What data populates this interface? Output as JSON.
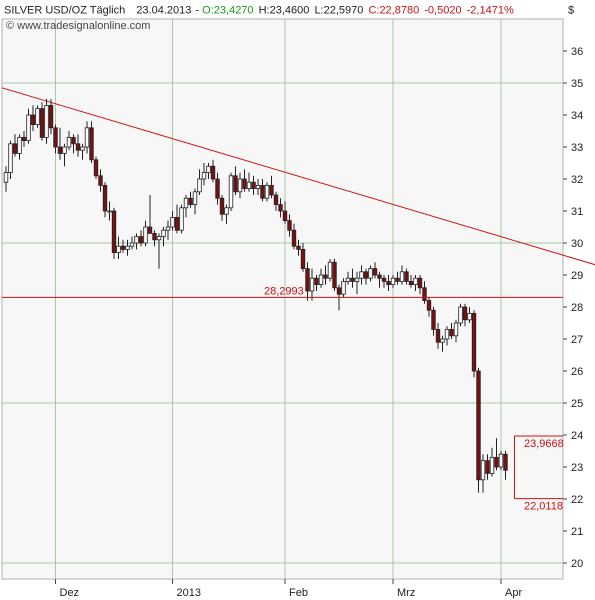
{
  "header": {
    "symbol": "SILVER USD/OZ Täglich",
    "date": "23.04.2013",
    "open": "O:23,4270",
    "high": "H:23,4600",
    "low": "L:22,5970",
    "close": "C:22,8780",
    "change": "-0,5020",
    "change_pct": "-2,1471%"
  },
  "currency_symbol": "$",
  "source": "© www.tradesignalonline.com",
  "colors": {
    "plot_bg": "#f7f7f7",
    "grid": "#a8c8a8",
    "line": "#cc1111",
    "candle": "#222222",
    "bear_fill": "#7a1010",
    "bull_fill": "#ffffff"
  },
  "chart_data": {
    "type": "candlestick",
    "ylim": [
      19.5,
      37.0
    ],
    "y_ticks": [
      "20",
      "21",
      "22",
      "23",
      "24",
      "25",
      "26",
      "27",
      "28",
      "29",
      "30",
      "31",
      "32",
      "33",
      "34",
      "35",
      "36"
    ],
    "x_labels": [
      "Dez",
      "2013",
      "Feb",
      "Mrz",
      "Apr"
    ],
    "x_label_positions": [
      11,
      37,
      62,
      86,
      110
    ],
    "grid": true,
    "annotations": [
      {
        "text": "28,2993",
        "value": 28.2993
      },
      {
        "text": "23,9668",
        "value": 23.9668
      },
      {
        "text": "22,0118",
        "value": 22.0118
      }
    ],
    "trendline": {
      "from": [
        0,
        34.85
      ],
      "to": [
        135,
        29.15
      ]
    },
    "candles": [
      [
        31.9,
        32.4,
        31.6,
        32.2
      ],
      [
        32.2,
        33.2,
        32.0,
        33.1
      ],
      [
        33.1,
        33.4,
        32.7,
        32.8
      ],
      [
        32.8,
        33.4,
        32.6,
        33.3
      ],
      [
        33.3,
        33.5,
        33.0,
        33.2
      ],
      [
        33.2,
        34.2,
        33.1,
        34.0
      ],
      [
        34.0,
        34.3,
        33.5,
        33.7
      ],
      [
        33.7,
        34.3,
        33.6,
        34.2
      ],
      [
        34.2,
        34.4,
        33.2,
        33.3
      ],
      [
        33.3,
        34.5,
        33.1,
        34.3
      ],
      [
        34.3,
        34.5,
        33.4,
        33.6
      ],
      [
        33.6,
        33.7,
        32.8,
        33.0
      ],
      [
        33.0,
        33.6,
        32.6,
        32.8
      ],
      [
        32.8,
        33.1,
        32.4,
        33.0
      ],
      [
        33.0,
        33.5,
        32.9,
        33.3
      ],
      [
        33.3,
        33.4,
        32.8,
        33.1
      ],
      [
        33.1,
        33.4,
        32.7,
        32.9
      ],
      [
        32.9,
        33.1,
        32.6,
        33.0
      ],
      [
        33.0,
        33.8,
        32.8,
        33.6
      ],
      [
        33.6,
        33.8,
        32.5,
        32.6
      ],
      [
        32.6,
        32.7,
        32.0,
        32.1
      ],
      [
        32.1,
        32.3,
        31.6,
        31.8
      ],
      [
        31.8,
        31.9,
        30.8,
        31.0
      ],
      [
        31.0,
        31.3,
        30.7,
        31.0
      ],
      [
        31.0,
        31.1,
        29.5,
        29.7
      ],
      [
        29.7,
        30.2,
        29.5,
        29.9
      ],
      [
        29.9,
        30.1,
        29.7,
        29.8
      ],
      [
        29.8,
        30.1,
        29.6,
        29.9
      ],
      [
        29.9,
        30.2,
        29.8,
        30.0
      ],
      [
        30.0,
        30.3,
        29.8,
        30.2
      ],
      [
        30.2,
        30.4,
        29.9,
        30.0
      ],
      [
        30.0,
        30.7,
        29.9,
        30.5
      ],
      [
        30.5,
        31.5,
        30.3,
        30.3
      ],
      [
        30.3,
        30.4,
        29.9,
        30.1
      ],
      [
        30.1,
        30.3,
        29.2,
        30.2
      ],
      [
        30.2,
        30.5,
        29.9,
        30.4
      ],
      [
        30.4,
        30.7,
        30.1,
        30.5
      ],
      [
        30.5,
        31.0,
        30.4,
        30.8
      ],
      [
        30.8,
        31.2,
        30.3,
        30.4
      ],
      [
        30.4,
        31.2,
        30.3,
        31.1
      ],
      [
        31.1,
        31.5,
        30.8,
        31.4
      ],
      [
        31.4,
        31.6,
        31.1,
        31.2
      ],
      [
        31.2,
        31.7,
        30.9,
        31.6
      ],
      [
        31.6,
        32.3,
        31.5,
        32.0
      ],
      [
        32.0,
        32.5,
        31.8,
        32.2
      ],
      [
        32.2,
        32.5,
        32.0,
        32.4
      ],
      [
        32.4,
        32.6,
        31.9,
        32.0
      ],
      [
        32.0,
        32.2,
        31.2,
        31.4
      ],
      [
        31.4,
        31.5,
        30.7,
        30.9
      ],
      [
        30.9,
        31.2,
        30.6,
        31.1
      ],
      [
        31.1,
        32.2,
        31.0,
        32.1
      ],
      [
        32.1,
        32.4,
        31.5,
        31.6
      ],
      [
        31.6,
        32.2,
        31.4,
        32.0
      ],
      [
        32.0,
        32.3,
        31.6,
        31.7
      ],
      [
        31.7,
        32.2,
        31.6,
        31.9
      ],
      [
        31.9,
        32.1,
        31.5,
        31.7
      ],
      [
        31.7,
        32.0,
        31.5,
        31.8
      ],
      [
        31.8,
        32.0,
        31.3,
        31.4
      ],
      [
        31.4,
        31.9,
        31.3,
        31.8
      ],
      [
        31.8,
        32.1,
        31.4,
        31.5
      ],
      [
        31.5,
        31.6,
        31.0,
        31.2
      ],
      [
        31.2,
        31.4,
        30.8,
        31.0
      ],
      [
        31.0,
        31.3,
        30.6,
        30.7
      ],
      [
        30.7,
        30.9,
        30.2,
        30.4
      ],
      [
        30.4,
        30.6,
        29.8,
        29.9
      ],
      [
        29.9,
        30.1,
        29.6,
        29.8
      ],
      [
        29.8,
        30.0,
        29.1,
        29.2
      ],
      [
        29.2,
        29.4,
        28.2,
        28.5
      ],
      [
        28.5,
        29.2,
        28.2,
        28.9
      ],
      [
        28.9,
        29.0,
        28.5,
        28.7
      ],
      [
        28.7,
        29.2,
        28.6,
        29.0
      ],
      [
        29.0,
        29.3,
        28.7,
        28.9
      ],
      [
        28.9,
        29.5,
        28.8,
        29.4
      ],
      [
        29.4,
        29.5,
        28.5,
        28.6
      ],
      [
        28.6,
        28.7,
        27.9,
        28.4
      ],
      [
        28.4,
        28.9,
        28.3,
        28.8
      ],
      [
        28.8,
        29.1,
        28.7,
        28.9
      ],
      [
        28.9,
        29.2,
        28.6,
        28.8
      ],
      [
        28.8,
        29.1,
        28.4,
        28.9
      ],
      [
        28.9,
        29.3,
        28.7,
        29.1
      ],
      [
        29.1,
        29.2,
        28.7,
        28.9
      ],
      [
        28.9,
        29.3,
        28.8,
        29.2
      ],
      [
        29.2,
        29.4,
        28.9,
        29.0
      ],
      [
        29.0,
        29.1,
        28.6,
        28.9
      ],
      [
        28.9,
        29.0,
        28.6,
        28.8
      ],
      [
        28.8,
        29.0,
        28.5,
        28.7
      ],
      [
        28.7,
        29.0,
        28.6,
        28.9
      ],
      [
        28.9,
        29.1,
        28.7,
        28.8
      ],
      [
        28.8,
        29.3,
        28.7,
        29.1
      ],
      [
        29.1,
        29.2,
        28.7,
        28.8
      ],
      [
        28.8,
        29.0,
        28.6,
        28.7
      ],
      [
        28.7,
        29.0,
        28.5,
        28.9
      ],
      [
        28.9,
        29.0,
        28.4,
        28.6
      ],
      [
        28.6,
        28.8,
        28.1,
        28.2
      ],
      [
        28.2,
        28.3,
        27.7,
        27.9
      ],
      [
        27.9,
        28.0,
        27.1,
        27.3
      ],
      [
        27.3,
        27.5,
        26.7,
        26.9
      ],
      [
        26.9,
        27.1,
        26.6,
        27.0
      ],
      [
        27.0,
        27.4,
        26.8,
        27.3
      ],
      [
        27.3,
        27.5,
        27.0,
        27.1
      ],
      [
        27.1,
        27.6,
        26.9,
        27.5
      ],
      [
        27.5,
        28.1,
        27.4,
        28.0
      ],
      [
        28.0,
        28.1,
        27.4,
        27.6
      ],
      [
        27.6,
        28.0,
        27.5,
        27.8
      ],
      [
        27.8,
        27.9,
        25.8,
        26.0
      ],
      [
        26.0,
        26.1,
        22.2,
        22.6
      ],
      [
        22.6,
        23.4,
        22.2,
        23.2
      ],
      [
        23.2,
        23.4,
        22.6,
        22.8
      ],
      [
        22.8,
        23.6,
        22.7,
        23.3
      ],
      [
        23.3,
        23.9,
        22.9,
        23.0
      ],
      [
        23.0,
        23.5,
        22.9,
        23.4
      ],
      [
        23.4,
        23.5,
        22.6,
        22.9
      ]
    ]
  }
}
